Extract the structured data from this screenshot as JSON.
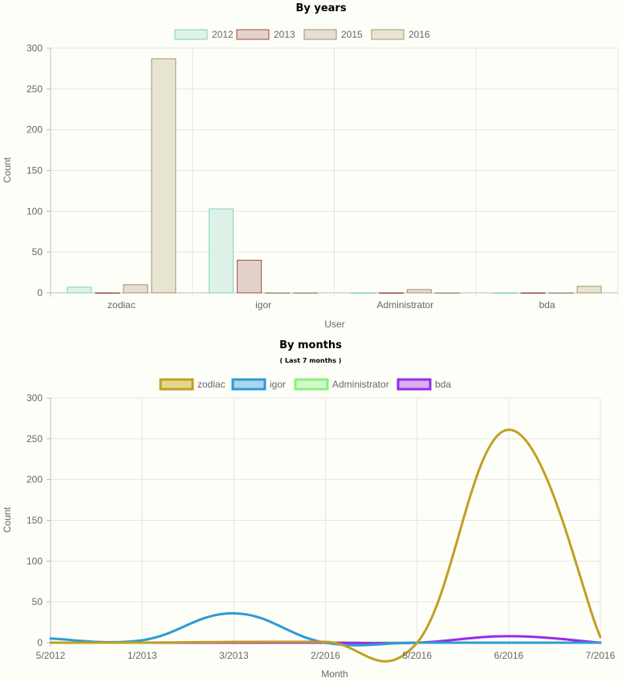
{
  "chart_data": [
    {
      "type": "bar",
      "title": "By years",
      "xlabel": "User",
      "ylabel": "Count",
      "ylim": [
        0,
        300
      ],
      "yticks": [
        0,
        50,
        100,
        150,
        200,
        250,
        300
      ],
      "grid": true,
      "legend_position": "top",
      "categories": [
        "zodiac",
        "igor",
        "Administrator",
        "bda"
      ],
      "series": [
        {
          "name": "2012",
          "values": [
            7,
            103,
            0,
            0
          ],
          "fill": "#dff2ea",
          "stroke": "#7ed3b4"
        },
        {
          "name": "2013",
          "values": [
            0,
            40,
            0,
            0
          ],
          "fill": "#e3d2ca",
          "stroke": "#9c4a44"
        },
        {
          "name": "2015",
          "values": [
            10,
            0,
            4,
            0
          ],
          "fill": "#e6dfd3",
          "stroke": "#9c8b78"
        },
        {
          "name": "2016",
          "values": [
            287,
            0,
            0,
            8
          ],
          "fill": "#e7e4d2",
          "stroke": "#9e9868"
        }
      ]
    },
    {
      "type": "line",
      "title": "By months",
      "subtitle": "( Last 7 months )",
      "xlabel": "Month",
      "ylabel": "Count",
      "ylim": [
        0,
        300
      ],
      "yticks": [
        0,
        50,
        100,
        150,
        200,
        250,
        300
      ],
      "grid": true,
      "legend_position": "top",
      "categories": [
        "5/2012",
        "1/2013",
        "3/2013",
        "2/2016",
        "5/2016",
        "6/2016",
        "7/2016"
      ],
      "series": [
        {
          "name": "zodiac",
          "values": [
            0,
            0,
            1,
            1,
            0,
            261,
            7
          ],
          "stroke": "#c0a023",
          "fill": "#e6d690"
        },
        {
          "name": "igor",
          "values": [
            5,
            3,
            36,
            0,
            0,
            0,
            0
          ],
          "stroke": "#2d9bd6",
          "fill": "#aad6ee"
        },
        {
          "name": "Administrator",
          "values": [
            0,
            0,
            0,
            0,
            0,
            0,
            0
          ],
          "stroke": "#8cf07c",
          "fill": "#d3f8cb"
        },
        {
          "name": "bda",
          "values": [
            0,
            0,
            0,
            0,
            0,
            8,
            0
          ],
          "stroke": "#9b2ae6",
          "fill": "#d8b0f2"
        }
      ]
    }
  ]
}
